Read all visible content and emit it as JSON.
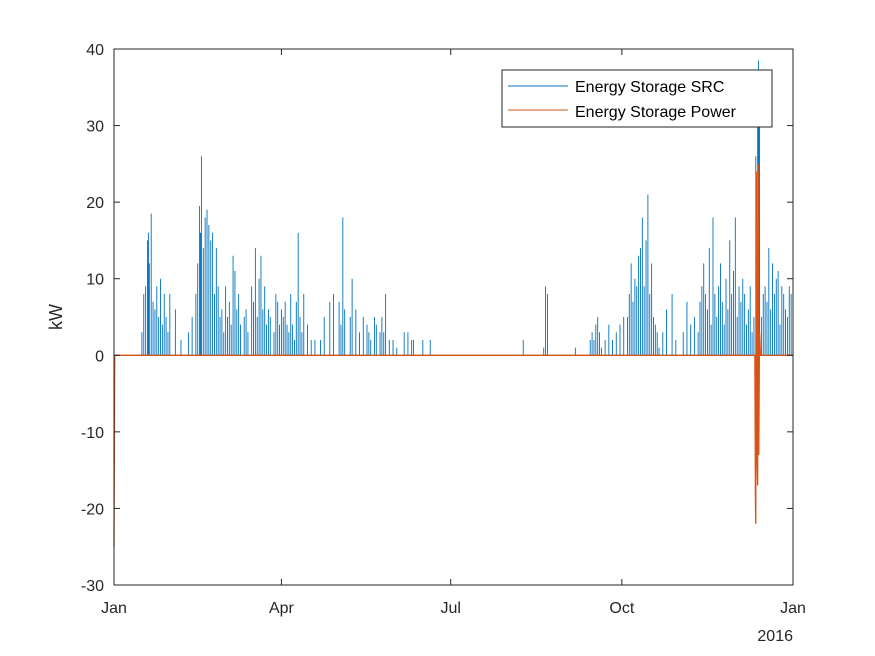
{
  "chart_data": {
    "type": "line",
    "title": "",
    "xlabel": "",
    "ylabel": "kW",
    "x_unit": "day of year 2015 (0 = Jan 1 2015, 365 = Jan 1 2016)",
    "xlim": [
      0,
      365
    ],
    "ylim": [
      -30,
      40
    ],
    "yticks": [
      -30,
      -20,
      -10,
      0,
      10,
      20,
      30,
      40
    ],
    "xticks": [
      {
        "label": "Jan",
        "value": 0
      },
      {
        "label": "Apr",
        "value": 90
      },
      {
        "label": "Jul",
        "value": 181
      },
      {
        "label": "Oct",
        "value": 273
      },
      {
        "label": "Jan",
        "value": 365
      }
    ],
    "x_secondary_label": "2016",
    "grid": false,
    "legend_position": "top-right",
    "series": [
      {
        "name": "Energy Storage SRC",
        "color": "#0072BD",
        "spikes": [
          [
            15,
            3
          ],
          [
            16,
            8
          ],
          [
            17,
            9
          ],
          [
            18,
            15
          ],
          [
            18.5,
            16
          ],
          [
            19,
            12
          ],
          [
            20,
            18.5
          ],
          [
            21,
            7
          ],
          [
            22,
            6
          ],
          [
            23,
            9
          ],
          [
            24,
            5
          ],
          [
            25,
            10
          ],
          [
            26,
            4
          ],
          [
            27,
            8
          ],
          [
            28,
            5
          ],
          [
            29,
            3
          ],
          [
            30,
            8
          ],
          [
            33,
            6
          ],
          [
            36,
            2
          ],
          [
            40,
            3
          ],
          [
            42,
            5
          ],
          [
            44,
            8
          ],
          [
            45,
            12
          ],
          [
            46,
            19.5
          ],
          [
            46.5,
            16
          ],
          [
            47,
            26
          ],
          [
            48,
            14
          ],
          [
            49,
            18
          ],
          [
            50,
            19
          ],
          [
            51,
            17
          ],
          [
            52,
            15
          ],
          [
            53,
            16
          ],
          [
            54,
            8
          ],
          [
            55,
            14
          ],
          [
            56,
            9
          ],
          [
            57,
            5
          ],
          [
            58,
            6
          ],
          [
            59,
            3
          ],
          [
            60,
            9
          ],
          [
            61,
            5
          ],
          [
            62,
            7
          ],
          [
            63,
            4
          ],
          [
            64,
            13
          ],
          [
            65,
            11
          ],
          [
            66,
            6
          ],
          [
            67,
            8
          ],
          [
            68,
            4
          ],
          [
            70,
            5
          ],
          [
            71,
            6
          ],
          [
            72,
            3
          ],
          [
            74,
            9
          ],
          [
            75,
            7
          ],
          [
            76,
            14
          ],
          [
            77,
            5
          ],
          [
            78,
            10
          ],
          [
            79,
            13
          ],
          [
            80,
            6
          ],
          [
            81,
            9
          ],
          [
            82,
            4
          ],
          [
            83,
            6
          ],
          [
            84,
            5
          ],
          [
            86,
            3
          ],
          [
            87,
            8
          ],
          [
            88,
            7
          ],
          [
            89,
            4
          ],
          [
            90,
            6
          ],
          [
            91,
            5
          ],
          [
            92,
            7
          ],
          [
            93,
            4
          ],
          [
            94,
            3
          ],
          [
            95,
            8
          ],
          [
            96,
            4
          ],
          [
            97,
            2
          ],
          [
            98,
            7
          ],
          [
            99,
            16
          ],
          [
            100,
            5
          ],
          [
            101,
            3
          ],
          [
            102,
            8
          ],
          [
            104,
            4
          ],
          [
            106,
            2
          ],
          [
            108,
            2
          ],
          [
            111,
            2
          ],
          [
            113,
            5
          ],
          [
            116,
            7
          ],
          [
            118,
            8
          ],
          [
            121,
            7
          ],
          [
            122,
            4
          ],
          [
            123,
            18
          ],
          [
            124,
            6
          ],
          [
            127,
            5
          ],
          [
            128,
            10
          ],
          [
            130,
            6
          ],
          [
            132,
            3
          ],
          [
            134,
            5
          ],
          [
            136,
            4
          ],
          [
            137,
            3
          ],
          [
            138,
            2
          ],
          [
            140,
            5
          ],
          [
            141,
            4
          ],
          [
            143,
            3
          ],
          [
            144,
            5
          ],
          [
            145,
            3
          ],
          [
            146,
            8
          ],
          [
            148,
            2
          ],
          [
            150,
            2
          ],
          [
            152,
            1
          ],
          [
            156,
            3
          ],
          [
            158,
            3
          ],
          [
            160,
            2
          ],
          [
            161,
            2
          ],
          [
            166,
            2
          ],
          [
            170,
            2
          ],
          [
            220,
            2
          ],
          [
            231,
            1
          ],
          [
            232,
            9
          ],
          [
            233,
            8
          ],
          [
            248,
            1
          ],
          [
            256,
            2
          ],
          [
            257,
            3
          ],
          [
            258,
            2
          ],
          [
            259,
            4
          ],
          [
            260,
            5
          ],
          [
            261,
            3
          ],
          [
            262,
            1
          ],
          [
            264,
            2
          ],
          [
            266,
            4
          ],
          [
            268,
            2
          ],
          [
            270,
            3
          ],
          [
            272,
            4
          ],
          [
            274,
            5
          ],
          [
            276,
            5
          ],
          [
            277,
            8
          ],
          [
            278,
            12
          ],
          [
            279,
            7
          ],
          [
            280,
            10
          ],
          [
            281,
            9
          ],
          [
            282,
            13
          ],
          [
            283,
            14
          ],
          [
            284,
            18
          ],
          [
            285,
            9
          ],
          [
            286,
            15
          ],
          [
            287,
            21
          ],
          [
            288,
            8
          ],
          [
            289,
            12
          ],
          [
            290,
            5
          ],
          [
            291,
            4
          ],
          [
            292,
            3
          ],
          [
            293,
            1
          ],
          [
            295,
            3
          ],
          [
            297,
            6
          ],
          [
            300,
            8
          ],
          [
            302,
            2
          ],
          [
            306,
            3
          ],
          [
            308,
            7
          ],
          [
            310,
            4
          ],
          [
            312,
            5
          ],
          [
            314,
            3
          ],
          [
            315,
            7
          ],
          [
            316,
            9
          ],
          [
            317,
            12
          ],
          [
            318,
            8
          ],
          [
            319,
            6
          ],
          [
            320,
            14
          ],
          [
            321,
            4
          ],
          [
            322,
            18
          ],
          [
            323,
            8
          ],
          [
            324,
            5
          ],
          [
            325,
            9
          ],
          [
            326,
            12
          ],
          [
            327,
            7
          ],
          [
            328,
            4
          ],
          [
            329,
            10
          ],
          [
            330,
            6
          ],
          [
            331,
            15
          ],
          [
            332,
            8
          ],
          [
            333,
            11
          ],
          [
            334,
            18
          ],
          [
            335,
            5
          ],
          [
            336,
            9
          ],
          [
            337,
            7
          ],
          [
            338,
            10
          ],
          [
            339,
            8
          ],
          [
            340,
            4
          ],
          [
            341,
            6
          ],
          [
            342,
            9
          ],
          [
            343,
            3
          ],
          [
            344,
            5
          ],
          [
            345,
            26
          ],
          [
            346,
            33
          ],
          [
            346.5,
            38.5
          ],
          [
            347,
            36
          ],
          [
            348,
            5
          ],
          [
            349,
            8
          ],
          [
            350,
            9
          ],
          [
            351,
            7
          ],
          [
            352,
            14
          ],
          [
            353,
            6
          ],
          [
            354,
            12
          ],
          [
            355,
            8
          ],
          [
            356,
            10
          ],
          [
            357,
            11
          ],
          [
            358,
            4
          ],
          [
            359,
            9
          ],
          [
            360,
            8
          ],
          [
            361,
            6
          ],
          [
            362,
            5
          ],
          [
            363,
            9
          ],
          [
            364,
            8
          ]
        ]
      },
      {
        "name": "Energy Storage Power",
        "color": "#D95319",
        "points": [
          [
            0,
            -25
          ],
          [
            0.4,
            0
          ],
          [
            344.5,
            0
          ],
          [
            344.8,
            -19
          ],
          [
            345,
            -22
          ],
          [
            345.3,
            24
          ],
          [
            345.6,
            -12
          ],
          [
            346,
            -17
          ],
          [
            346.3,
            25
          ],
          [
            346.6,
            -13
          ],
          [
            347,
            3
          ],
          [
            347.5,
            0
          ],
          [
            365,
            0
          ]
        ]
      }
    ]
  }
}
